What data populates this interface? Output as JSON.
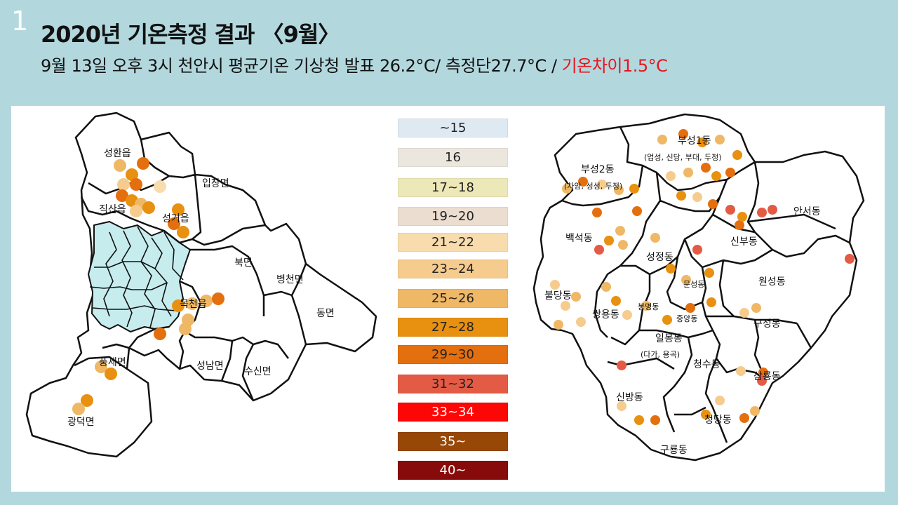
{
  "slide": {
    "number": "1",
    "title": "2020년 기온측정 결과 〈9월〉",
    "subtitle_main": "9월 13일 오후 3시 천안시 평균기온 기상청 발표 26.2°C/ 측정단27.7°C  / ",
    "subtitle_diff": "기온차이1.5°C"
  },
  "colors": {
    "background": "#b2d8de",
    "highlight_region": "#c6ecee",
    "difference_text": "#e8141e"
  },
  "legend": [
    {
      "label": "~15",
      "color": "#dfe9f2"
    },
    {
      "label": "16",
      "color": "#ebe7df"
    },
    {
      "label": "17~18",
      "color": "#ede8b7"
    },
    {
      "label": "19~20",
      "color": "#ebddcf"
    },
    {
      "label": "21~22",
      "color": "#f8dcae"
    },
    {
      "label": "23~24",
      "color": "#f6cc8e"
    },
    {
      "label": "25~26",
      "color": "#efb866"
    },
    {
      "label": "27~28",
      "color": "#e8900f"
    },
    {
      "label": "29~30",
      "color": "#e46f0e"
    },
    {
      "label": "31~32",
      "color": "#e45b45"
    },
    {
      "label": "33~34",
      "color": "#fc0606"
    },
    {
      "label": "35~",
      "color": "#984806"
    },
    {
      "label": "40~",
      "color": "#870b0b"
    }
  ],
  "west_map": {
    "regions": [
      {
        "name": "성환읍"
      },
      {
        "name": "입장면"
      },
      {
        "name": "직산읍"
      },
      {
        "name": "성거읍"
      },
      {
        "name": "북면"
      },
      {
        "name": "병천면"
      },
      {
        "name": "목천읍"
      },
      {
        "name": "동면"
      },
      {
        "name": "풍세면"
      },
      {
        "name": "성남면"
      },
      {
        "name": "수신면"
      },
      {
        "name": "광덕면"
      }
    ]
  },
  "east_map": {
    "regions": [
      {
        "name": "부성1동",
        "sub": "(업성, 신당, 부대, 두정)"
      },
      {
        "name": "부성2동",
        "sub": "(차암, 성성, 두정)"
      },
      {
        "name": "안서동"
      },
      {
        "name": "백석동"
      },
      {
        "name": "성정동"
      },
      {
        "name": "신부동"
      },
      {
        "name": "원성동"
      },
      {
        "name": "문성동"
      },
      {
        "name": "불당동"
      },
      {
        "name": "봉명동"
      },
      {
        "name": "쌍용동"
      },
      {
        "name": "중앙동"
      },
      {
        "name": "구성동"
      },
      {
        "name": "일봉동",
        "sub": "(다가, 용곡)"
      },
      {
        "name": "청수동"
      },
      {
        "name": "삼룡동"
      },
      {
        "name": "신방동"
      },
      {
        "name": "청당동"
      },
      {
        "name": "구룡동"
      }
    ]
  }
}
